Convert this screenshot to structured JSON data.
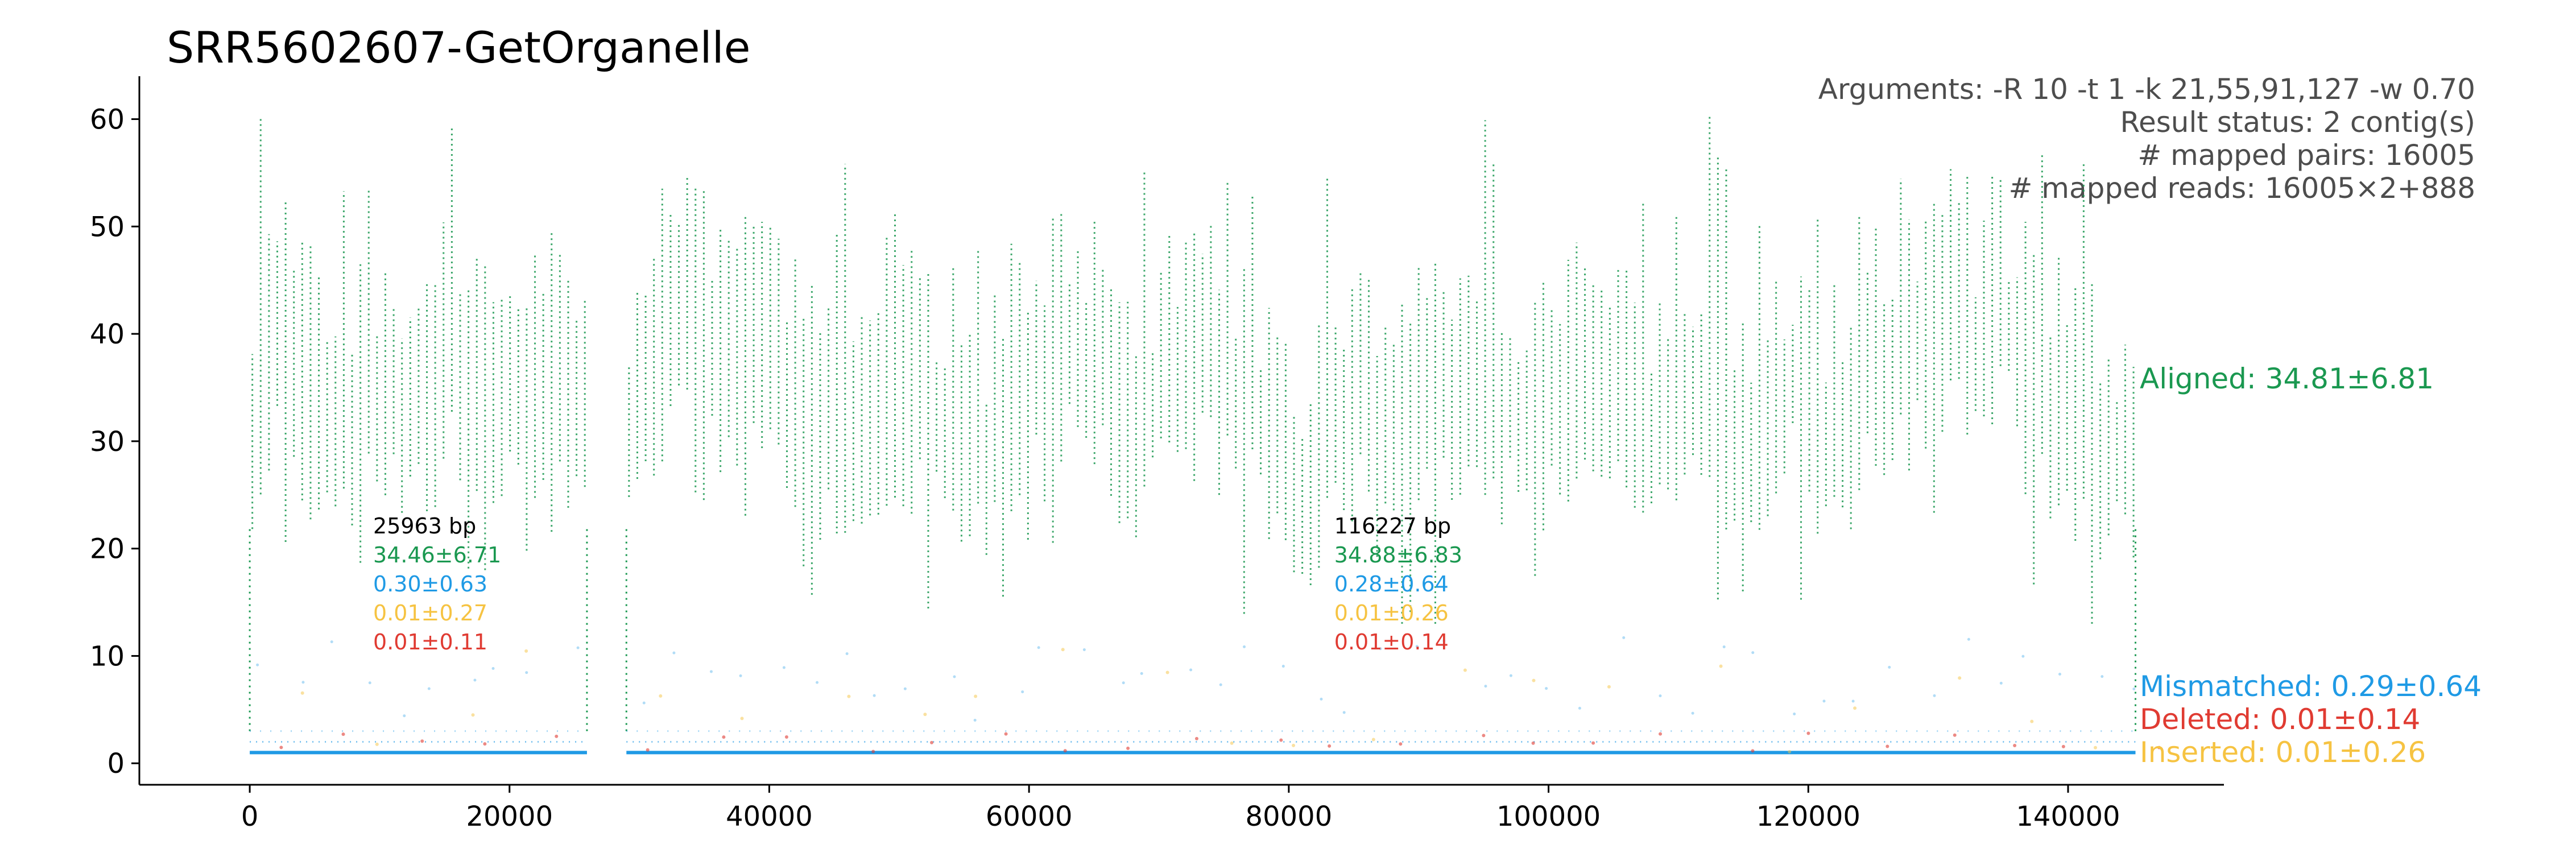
{
  "chart_data": {
    "type": "scatter",
    "title": "SRR5602607-GetOrganelle",
    "xlabel": "",
    "ylabel": "",
    "xlim": [
      -8500,
      152000
    ],
    "ylim": [
      -2,
      64
    ],
    "xticks": [
      0,
      20000,
      40000,
      60000,
      80000,
      100000,
      120000,
      140000
    ],
    "yticks": [
      0,
      10,
      20,
      30,
      40,
      50,
      60
    ],
    "grid": false,
    "info_lines": [
      "Arguments: -R 10 -t 1 -k 21,55,91,127 -w 0.70",
      "Result status: 2 contig(s)",
      "# mapped pairs: 16005",
      "# mapped reads: 16005×2+888"
    ],
    "colors": {
      "aligned": "#1a9850",
      "mismatched": "#1f9ae5",
      "deleted": "#e03b32",
      "inserted": "#f6c342"
    },
    "contigs": [
      {
        "x_range": [
          0,
          25963
        ],
        "length_label": "25963 bp",
        "aligned_label": "34.46±6.71",
        "mismatched_label": "0.30±0.63",
        "inserted_label": "0.01±0.27",
        "deleted_label": "0.01±0.11",
        "label_x": 9500
      },
      {
        "x_range": [
          29000,
          145190
        ],
        "length_label": "116227 bp",
        "aligned_label": "34.88±6.83",
        "mismatched_label": "0.28±0.64",
        "inserted_label": "0.01±0.26",
        "deleted_label": "0.01±0.14",
        "label_x": 83500
      }
    ],
    "series": [
      {
        "name": "Aligned: 34.81±6.81",
        "color": "#1a9850",
        "mean": 34.81,
        "sd": 6.81,
        "profile_x": [
          0,
          1500,
          3000,
          5000,
          7000,
          9000,
          11000,
          13000,
          15000,
          17000,
          19000,
          21000,
          23000,
          25000,
          25963,
          29000,
          31000,
          33000,
          35000,
          37000,
          39000,
          41000,
          43000,
          45000,
          47000,
          49000,
          51000,
          53000,
          55000,
          57000,
          59000,
          61000,
          63000,
          65000,
          67000,
          69000,
          71000,
          73000,
          75000,
          77000,
          79000,
          81000,
          83000,
          85000,
          87000,
          89000,
          91000,
          93000,
          95000,
          97000,
          99000,
          101000,
          103000,
          105000,
          107000,
          109000,
          111000,
          113000,
          115000,
          117000,
          119000,
          121000,
          123000,
          125000,
          127000,
          129000,
          131000,
          133000,
          135000,
          137000,
          139000,
          141000,
          143000,
          145190
        ],
        "profile_y": [
          30,
          38,
          40,
          32,
          30,
          34,
          33,
          32,
          38,
          36,
          32,
          36,
          37,
          33,
          30,
          30,
          36,
          42,
          40,
          38,
          38,
          36,
          32,
          30,
          34,
          30,
          34,
          32,
          33,
          28,
          34,
          38,
          40,
          38,
          34,
          32,
          36,
          38,
          35,
          34,
          28,
          26,
          30,
          34,
          30,
          32,
          33,
          34,
          35,
          33,
          32,
          36,
          34,
          32,
          34,
          30,
          34,
          36,
          30,
          34,
          36,
          30,
          32,
          36,
          38,
          40,
          42,
          38,
          42,
          36,
          34,
          32,
          30,
          28
        ],
        "band": [
          22,
          59
        ]
      },
      {
        "name": "Mismatched: 0.29±0.64",
        "color": "#1f9ae5",
        "mean": 0.29,
        "sd": 0.64
      },
      {
        "name": "Deleted: 0.01±0.14",
        "color": "#e03b32",
        "mean": 0.01,
        "sd": 0.14
      },
      {
        "name": "Inserted: 0.01±0.26",
        "color": "#f6c342",
        "mean": 0.01,
        "sd": 0.26
      }
    ]
  }
}
